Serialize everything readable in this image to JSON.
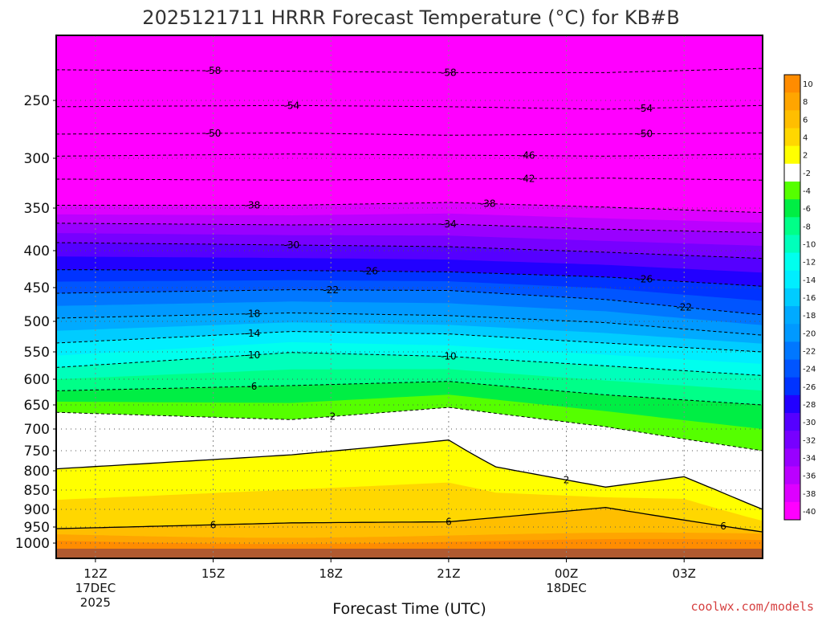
{
  "chart_data": {
    "type": "heatmap",
    "title": "2025121711 HRRR Forecast Temperature (°C) for KB#B",
    "xlabel": "Forecast Time (UTC)",
    "ylabel": "",
    "credit": "coolwx.com/models",
    "y_scale": "pressure (hPa, decreasing upward)",
    "y_ticks": [
      250,
      300,
      350,
      400,
      450,
      500,
      550,
      600,
      650,
      700,
      750,
      800,
      850,
      900,
      950,
      1000
    ],
    "x_ticks": [
      {
        "label": "12Z",
        "sub": [
          "17DEC",
          "2025"
        ],
        "hour": 0
      },
      {
        "label": "15Z",
        "sub": [],
        "hour": 3
      },
      {
        "label": "18Z",
        "sub": [],
        "hour": 6
      },
      {
        "label": "21Z",
        "sub": [],
        "hour": 9
      },
      {
        "label": "00Z",
        "sub": [
          "18DEC"
        ],
        "hour": 12
      },
      {
        "label": "03Z",
        "sub": [],
        "hour": 15
      }
    ],
    "x_range_hours": [
      -1,
      17
    ],
    "grid": true,
    "colorbar": {
      "levels": [
        "10",
        "8",
        "6",
        "4",
        "2",
        "-2",
        "-4",
        "-6",
        "-8",
        "-10",
        "-12",
        "-14",
        "-16",
        "-18",
        "-20",
        "-22",
        "-24",
        "-26",
        "-28",
        "-30",
        "-32",
        "-34",
        "-36",
        "-38",
        "-40"
      ],
      "colors": [
        "#ff8c00",
        "#ffa500",
        "#ffbe00",
        "#ffd700",
        "#ffff00",
        "#ffffff",
        "#55ff00",
        "#00ee44",
        "#00ff88",
        "#00ffbb",
        "#00ffee",
        "#00eeff",
        "#00ccff",
        "#00aaff",
        "#0099ff",
        "#0077ff",
        "#0055ff",
        "#0033ff",
        "#2200ff",
        "#5500ff",
        "#7700ff",
        "#9900ff",
        "#bb00ff",
        "#dd00ff",
        "#ff00ff"
      ]
    },
    "contours": [
      {
        "value": -58,
        "pressure_by_hour": [
          [
            -1,
            227
          ],
          [
            5,
            228
          ],
          [
            9,
            229
          ],
          [
            13,
            229
          ],
          [
            17,
            226
          ]
        ],
        "label_hours": [
          3,
          9
        ]
      },
      {
        "value": -54,
        "pressure_by_hour": [
          [
            -1,
            255
          ],
          [
            5,
            254
          ],
          [
            9,
            255
          ],
          [
            13,
            257
          ],
          [
            17,
            254
          ]
        ],
        "label_hours": [
          5,
          14
        ]
      },
      {
        "value": -50,
        "pressure_by_hour": [
          [
            -1,
            278
          ],
          [
            5,
            277
          ],
          [
            9,
            279
          ],
          [
            13,
            278
          ],
          [
            17,
            277
          ]
        ],
        "label_hours": [
          3,
          14
        ]
      },
      {
        "value": -46,
        "pressure_by_hour": [
          [
            -1,
            298
          ],
          [
            5,
            296
          ],
          [
            9,
            297
          ],
          [
            13,
            298
          ],
          [
            17,
            296
          ]
        ],
        "label_hours": [
          11
        ]
      },
      {
        "value": -42,
        "pressure_by_hour": [
          [
            -1,
            320
          ],
          [
            5,
            321
          ],
          [
            9,
            320
          ],
          [
            13,
            319
          ],
          [
            17,
            321
          ]
        ],
        "label_hours": [
          11
        ]
      },
      {
        "value": -38,
        "pressure_by_hour": [
          [
            -1,
            347
          ],
          [
            5,
            347
          ],
          [
            9,
            344
          ],
          [
            13,
            349
          ],
          [
            17,
            355
          ]
        ],
        "label_hours": [
          4,
          10
        ]
      },
      {
        "value": -34,
        "pressure_by_hour": [
          [
            -1,
            367
          ],
          [
            5,
            369
          ],
          [
            9,
            368
          ],
          [
            13,
            374
          ],
          [
            17,
            378
          ]
        ],
        "label_hours": [
          9
        ]
      },
      {
        "value": -30,
        "pressure_by_hour": [
          [
            -1,
            390
          ],
          [
            5,
            393
          ],
          [
            9,
            395
          ],
          [
            13,
            402
          ],
          [
            17,
            410
          ]
        ],
        "label_hours": [
          5
        ]
      },
      {
        "value": -26,
        "pressure_by_hour": [
          [
            -1,
            425
          ],
          [
            5,
            426
          ],
          [
            9,
            428
          ],
          [
            13,
            435
          ],
          [
            17,
            448
          ]
        ],
        "label_hours": [
          7,
          14
        ]
      },
      {
        "value": -22,
        "pressure_by_hour": [
          [
            -1,
            458
          ],
          [
            5,
            453
          ],
          [
            9,
            454
          ],
          [
            13,
            467
          ],
          [
            17,
            490
          ]
        ],
        "label_hours": [
          6,
          15
        ]
      },
      {
        "value": -18,
        "pressure_by_hour": [
          [
            -1,
            495
          ],
          [
            5,
            487
          ],
          [
            9,
            491
          ],
          [
            13,
            502
          ],
          [
            17,
            522
          ]
        ],
        "label_hours": [
          4
        ]
      },
      {
        "value": -14,
        "pressure_by_hour": [
          [
            -1,
            535
          ],
          [
            5,
            516
          ],
          [
            9,
            520
          ],
          [
            13,
            535
          ],
          [
            17,
            550
          ]
        ],
        "label_hours": [
          4
        ]
      },
      {
        "value": -10,
        "pressure_by_hour": [
          [
            -1,
            578
          ],
          [
            5,
            551
          ],
          [
            9,
            558
          ],
          [
            13,
            575
          ],
          [
            17,
            593
          ]
        ],
        "label_hours": [
          4,
          9
        ]
      },
      {
        "value": -6,
        "pressure_by_hour": [
          [
            -1,
            622
          ],
          [
            5,
            612
          ],
          [
            9,
            604
          ],
          [
            13,
            630
          ],
          [
            17,
            650
          ]
        ],
        "label_hours": [
          4
        ]
      },
      {
        "value": -2,
        "pressure_by_hour": [
          [
            -1,
            665
          ],
          [
            5,
            680
          ],
          [
            9,
            655
          ],
          [
            13,
            695
          ],
          [
            17,
            750
          ]
        ],
        "label_hours": [
          6
        ]
      },
      {
        "value": 2,
        "pressure_by_hour": [
          [
            -1,
            795
          ],
          [
            5,
            760
          ],
          [
            9,
            725
          ],
          [
            10.2,
            790
          ],
          [
            13,
            842
          ],
          [
            15,
            815
          ],
          [
            17,
            900
          ]
        ],
        "label_hours": [
          12
        ]
      },
      {
        "value": 6,
        "pressure_by_hour": [
          [
            -1,
            955
          ],
          [
            5,
            938
          ],
          [
            9,
            935
          ],
          [
            13,
            895
          ],
          [
            17,
            965
          ]
        ],
        "label_hours": [
          3,
          9,
          16
        ]
      }
    ],
    "labels": {
      "-58": "-58",
      "-54": "-54",
      "-50": "-50",
      "-46": "-46",
      "-42": "-42",
      "-38": "-38",
      "-34": "-34",
      "-30": "-30",
      "-26": "-26",
      "-22": "-22",
      "-18": "-18",
      "-14": "-14",
      "-10": "-10",
      "-6": "-6",
      "-2": "-2",
      "2": "2",
      "6": "6"
    }
  }
}
